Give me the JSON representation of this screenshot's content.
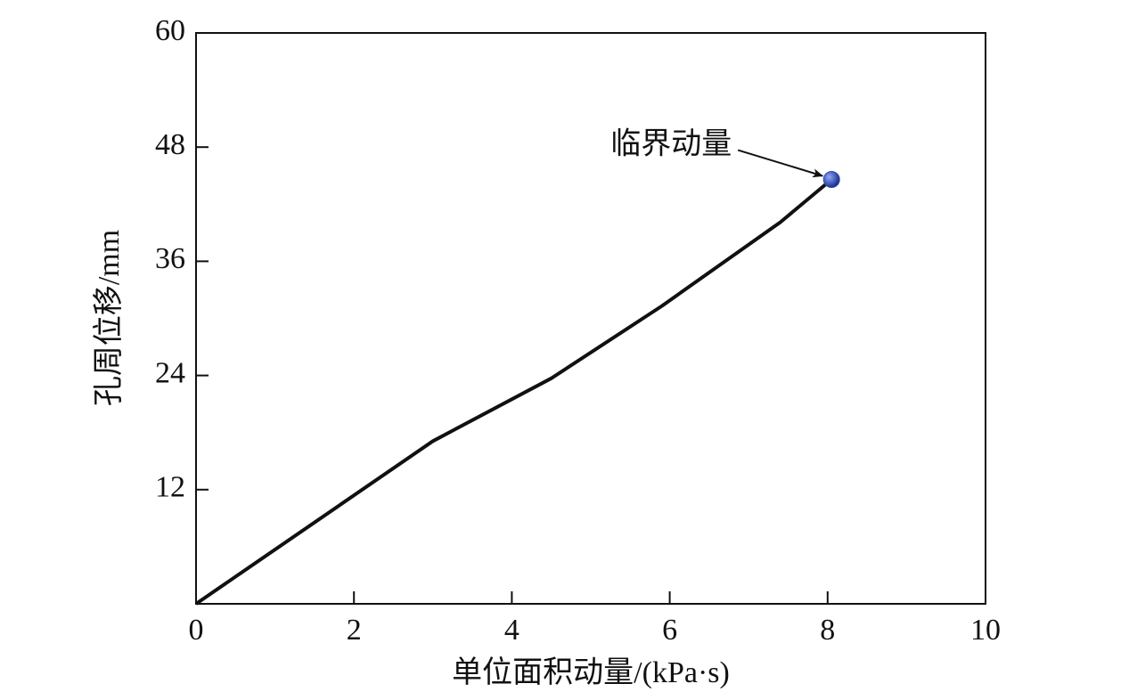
{
  "chart_data": {
    "type": "line",
    "x_label": "单位面积动量/(kPa·s)",
    "y_label": "孔周位移/mm",
    "x": [
      0,
      3,
      4.5,
      5.9,
      7.4,
      8.05
    ],
    "series": [
      {
        "color": "#111111",
        "values": [
          0,
          17.1,
          23.7,
          31.3,
          40.1,
          44.6
        ]
      }
    ],
    "marker_color": "#2a4bb0",
    "annotation": "临界动量",
    "xlim": [
      0,
      10
    ],
    "xticks": [
      0,
      2,
      4,
      6,
      8,
      10
    ],
    "ylim": [
      0,
      60
    ],
    "yticks": [
      12,
      24,
      36,
      48,
      60
    ]
  }
}
